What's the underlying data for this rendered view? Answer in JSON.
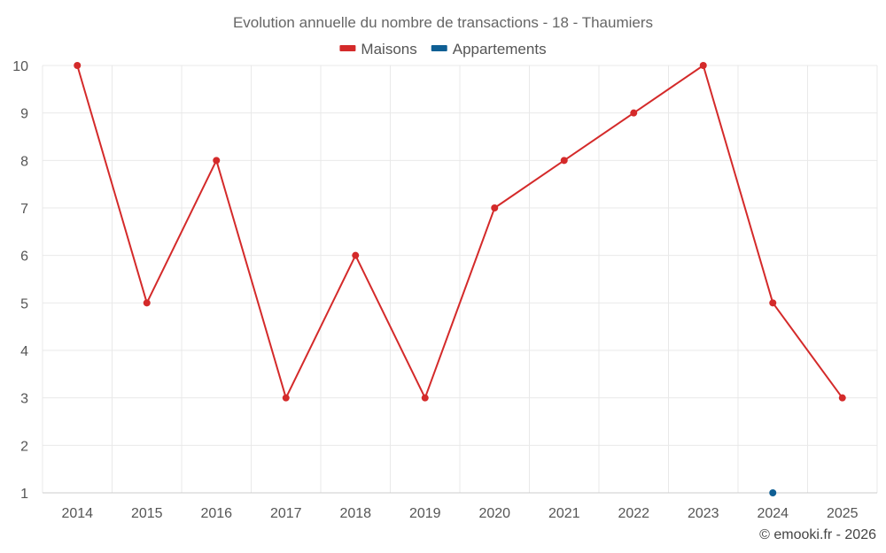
{
  "chart_data": {
    "type": "line",
    "title": "Evolution annuelle du nombre de transactions - 18 - Thaumiers",
    "categories": [
      "2014",
      "2015",
      "2016",
      "2017",
      "2018",
      "2019",
      "2020",
      "2021",
      "2022",
      "2023",
      "2024",
      "2025"
    ],
    "ylim": [
      1,
      10
    ],
    "yticks": [
      "1",
      "2",
      "3",
      "4",
      "5",
      "6",
      "7",
      "8",
      "9",
      "10"
    ],
    "grid": true,
    "legend_position": "top-center",
    "series": [
      {
        "name": "Maisons",
        "color": "#d42a2a",
        "values": [
          10,
          5,
          8,
          3,
          6,
          3,
          7,
          8,
          9,
          10,
          5,
          3
        ]
      },
      {
        "name": "Appartements",
        "color": "#0f5f94",
        "values": [
          null,
          null,
          null,
          null,
          null,
          null,
          null,
          null,
          null,
          null,
          1,
          null
        ]
      }
    ]
  },
  "credit": "© emooki.fr - 2026"
}
